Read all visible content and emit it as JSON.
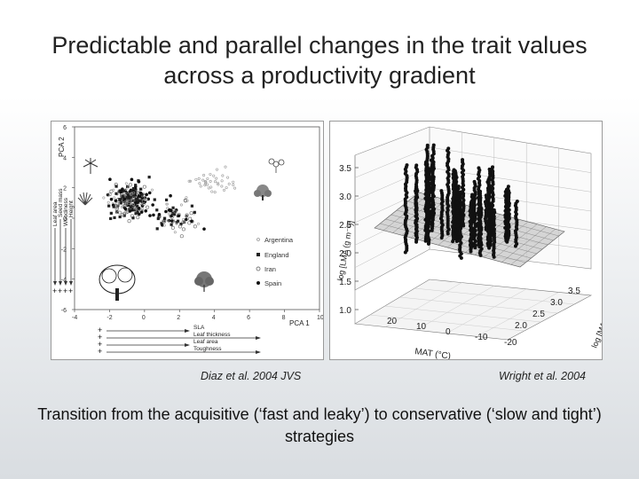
{
  "slide": {
    "title": "Predictable and parallel changes in the trait values across a productivity gradient",
    "caption": "Transition from the acquisitive (‘fast and leaky’) to conservative (‘slow and tight’) strategies"
  },
  "credits": {
    "left": "Diaz et al. 2004 JVS",
    "right": "Wright et al. 2004"
  },
  "chart_data": [
    {
      "type": "scatter",
      "xlabel": "PCA 1",
      "ylabel": "PCA 2",
      "xlim": [
        -4,
        10
      ],
      "ylim": [
        -6,
        6
      ],
      "x_ticks": [
        "-4",
        "-2",
        "0",
        "2",
        "4",
        "6",
        "8",
        "10"
      ],
      "y_ticks": [
        "6",
        "4",
        "2",
        "0",
        "-2",
        "-4",
        "-6"
      ],
      "legend_position": "right",
      "series": [
        {
          "name": "Argentina",
          "marker": "small open circle",
          "color": "#999999"
        },
        {
          "name": "England",
          "marker": "filled square",
          "color": "#222222"
        },
        {
          "name": "Iran",
          "marker": "open circle",
          "color": "#777777"
        },
        {
          "name": "Spain",
          "marker": "filled circle",
          "color": "#111111"
        }
      ],
      "left_axis_traits": [
        "Leaf area",
        "Seed mass",
        "Woodiness",
        "Height"
      ],
      "bottom_axis_traits": [
        "SLA",
        "Leaf thickness",
        "Leaf area",
        "Toughness"
      ],
      "trait_signs": [
        "+",
        "+",
        "+",
        "+"
      ]
    },
    {
      "type": "scatter",
      "projection": "3d",
      "xlabel": "MAT (°C)",
      "ylabel": "log [MAR (mm)]",
      "zlabel": "log [LMA (g m⁻²)]",
      "x_ticks": [
        "20",
        "10",
        "0",
        "-10",
        "-20"
      ],
      "y_ticks": [
        "3.5",
        "3.0",
        "2.5",
        "2.0"
      ],
      "z_ticks": [
        "3.5",
        "3.0",
        "2.5",
        "2.0",
        "1.5",
        "1.0"
      ],
      "surface": "fitted plane",
      "grid": true
    }
  ]
}
